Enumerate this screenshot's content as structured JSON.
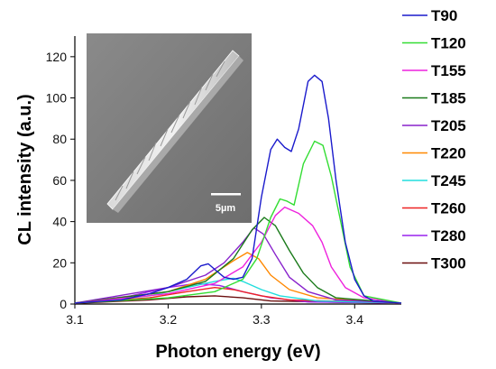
{
  "chart_data": {
    "type": "line",
    "xlabel": "Photon energy (eV)",
    "ylabel": "CL intensity (a.u.)",
    "xlim": [
      3.1,
      3.45
    ],
    "ylim": [
      0,
      130
    ],
    "x_ticks": [
      "3.1",
      "3.2",
      "3.3",
      "3.4"
    ],
    "y_ticks": [
      "0",
      "20",
      "40",
      "60",
      "80",
      "100",
      "120"
    ],
    "legend_position": "right",
    "inset": {
      "kind": "SEM micrograph",
      "position": "top-left",
      "scale_bar_label": "5µm"
    },
    "series": [
      {
        "name": "T90",
        "color": "#1a1acc",
        "points": [
          [
            3.1,
            0.5
          ],
          [
            3.15,
            2
          ],
          [
            3.18,
            5
          ],
          [
            3.2,
            8
          ],
          [
            3.22,
            12
          ],
          [
            3.235,
            18.5
          ],
          [
            3.243,
            19.5
          ],
          [
            3.252,
            16
          ],
          [
            3.26,
            13
          ],
          [
            3.27,
            12
          ],
          [
            3.28,
            13
          ],
          [
            3.29,
            22
          ],
          [
            3.3,
            52
          ],
          [
            3.31,
            75
          ],
          [
            3.317,
            80
          ],
          [
            3.325,
            76
          ],
          [
            3.332,
            74
          ],
          [
            3.34,
            85
          ],
          [
            3.35,
            108
          ],
          [
            3.357,
            111
          ],
          [
            3.365,
            108
          ],
          [
            3.372,
            90
          ],
          [
            3.38,
            60
          ],
          [
            3.39,
            30
          ],
          [
            3.4,
            12
          ],
          [
            3.41,
            4
          ],
          [
            3.42,
            1.5
          ],
          [
            3.45,
            0.5
          ]
        ]
      },
      {
        "name": "T120",
        "color": "#33dd33",
        "points": [
          [
            3.1,
            0.5
          ],
          [
            3.2,
            3
          ],
          [
            3.25,
            6
          ],
          [
            3.28,
            12
          ],
          [
            3.295,
            22
          ],
          [
            3.31,
            42
          ],
          [
            3.32,
            51
          ],
          [
            3.327,
            50
          ],
          [
            3.335,
            48
          ],
          [
            3.345,
            68
          ],
          [
            3.357,
            79
          ],
          [
            3.366,
            77
          ],
          [
            3.375,
            62
          ],
          [
            3.385,
            40
          ],
          [
            3.395,
            18
          ],
          [
            3.41,
            4
          ],
          [
            3.45,
            0.5
          ]
        ]
      },
      {
        "name": "T155",
        "color": "#ee22dd",
        "points": [
          [
            3.1,
            0.5
          ],
          [
            3.2,
            5
          ],
          [
            3.25,
            10
          ],
          [
            3.28,
            18
          ],
          [
            3.3,
            30
          ],
          [
            3.315,
            43
          ],
          [
            3.325,
            47
          ],
          [
            3.34,
            44
          ],
          [
            3.355,
            38
          ],
          [
            3.365,
            30
          ],
          [
            3.375,
            18
          ],
          [
            3.39,
            8
          ],
          [
            3.41,
            3
          ],
          [
            3.45,
            0.5
          ]
        ]
      },
      {
        "name": "T185",
        "color": "#1a7a1a",
        "points": [
          [
            3.1,
            0.5
          ],
          [
            3.2,
            6
          ],
          [
            3.24,
            11
          ],
          [
            3.27,
            22
          ],
          [
            3.29,
            36
          ],
          [
            3.303,
            42
          ],
          [
            3.315,
            38
          ],
          [
            3.33,
            26
          ],
          [
            3.345,
            15
          ],
          [
            3.36,
            8
          ],
          [
            3.38,
            3
          ],
          [
            3.45,
            0.5
          ]
        ]
      },
      {
        "name": "T205",
        "color": "#8822cc",
        "points": [
          [
            3.1,
            0.5
          ],
          [
            3.2,
            8
          ],
          [
            3.24,
            14
          ],
          [
            3.26,
            20
          ],
          [
            3.28,
            30
          ],
          [
            3.292,
            37
          ],
          [
            3.302,
            34
          ],
          [
            3.315,
            24
          ],
          [
            3.33,
            13
          ],
          [
            3.35,
            6
          ],
          [
            3.38,
            2
          ],
          [
            3.45,
            0.5
          ]
        ]
      },
      {
        "name": "T220",
        "color": "#ff8800",
        "points": [
          [
            3.1,
            0.5
          ],
          [
            3.2,
            6
          ],
          [
            3.24,
            12
          ],
          [
            3.27,
            21
          ],
          [
            3.285,
            25
          ],
          [
            3.297,
            22
          ],
          [
            3.31,
            14
          ],
          [
            3.33,
            7
          ],
          [
            3.36,
            3
          ],
          [
            3.45,
            0.5
          ]
        ]
      },
      {
        "name": "T245",
        "color": "#22dddd",
        "points": [
          [
            3.1,
            0.5
          ],
          [
            3.18,
            4
          ],
          [
            3.22,
            8
          ],
          [
            3.25,
            11
          ],
          [
            3.27,
            12.5
          ],
          [
            3.28,
            11
          ],
          [
            3.3,
            7
          ],
          [
            3.32,
            4
          ],
          [
            3.36,
            1.5
          ],
          [
            3.45,
            0.5
          ]
        ]
      },
      {
        "name": "T260",
        "color": "#ee2222",
        "points": [
          [
            3.1,
            0.5
          ],
          [
            3.18,
            3
          ],
          [
            3.22,
            6
          ],
          [
            3.25,
            8
          ],
          [
            3.27,
            7
          ],
          [
            3.3,
            4
          ],
          [
            3.33,
            2
          ],
          [
            3.45,
            0.5
          ]
        ]
      },
      {
        "name": "T280",
        "color": "#9922ee",
        "points": [
          [
            3.1,
            0.5
          ],
          [
            3.16,
            4
          ],
          [
            3.2,
            8
          ],
          [
            3.23,
            10
          ],
          [
            3.255,
            9
          ],
          [
            3.28,
            6
          ],
          [
            3.31,
            3
          ],
          [
            3.35,
            1
          ],
          [
            3.45,
            0.5
          ]
        ]
      },
      {
        "name": "T300",
        "color": "#6b0f0f",
        "points": [
          [
            3.1,
            0.3
          ],
          [
            3.18,
            2
          ],
          [
            3.22,
            3.5
          ],
          [
            3.25,
            4
          ],
          [
            3.28,
            3
          ],
          [
            3.31,
            1.5
          ],
          [
            3.45,
            0.3
          ]
        ]
      }
    ]
  }
}
